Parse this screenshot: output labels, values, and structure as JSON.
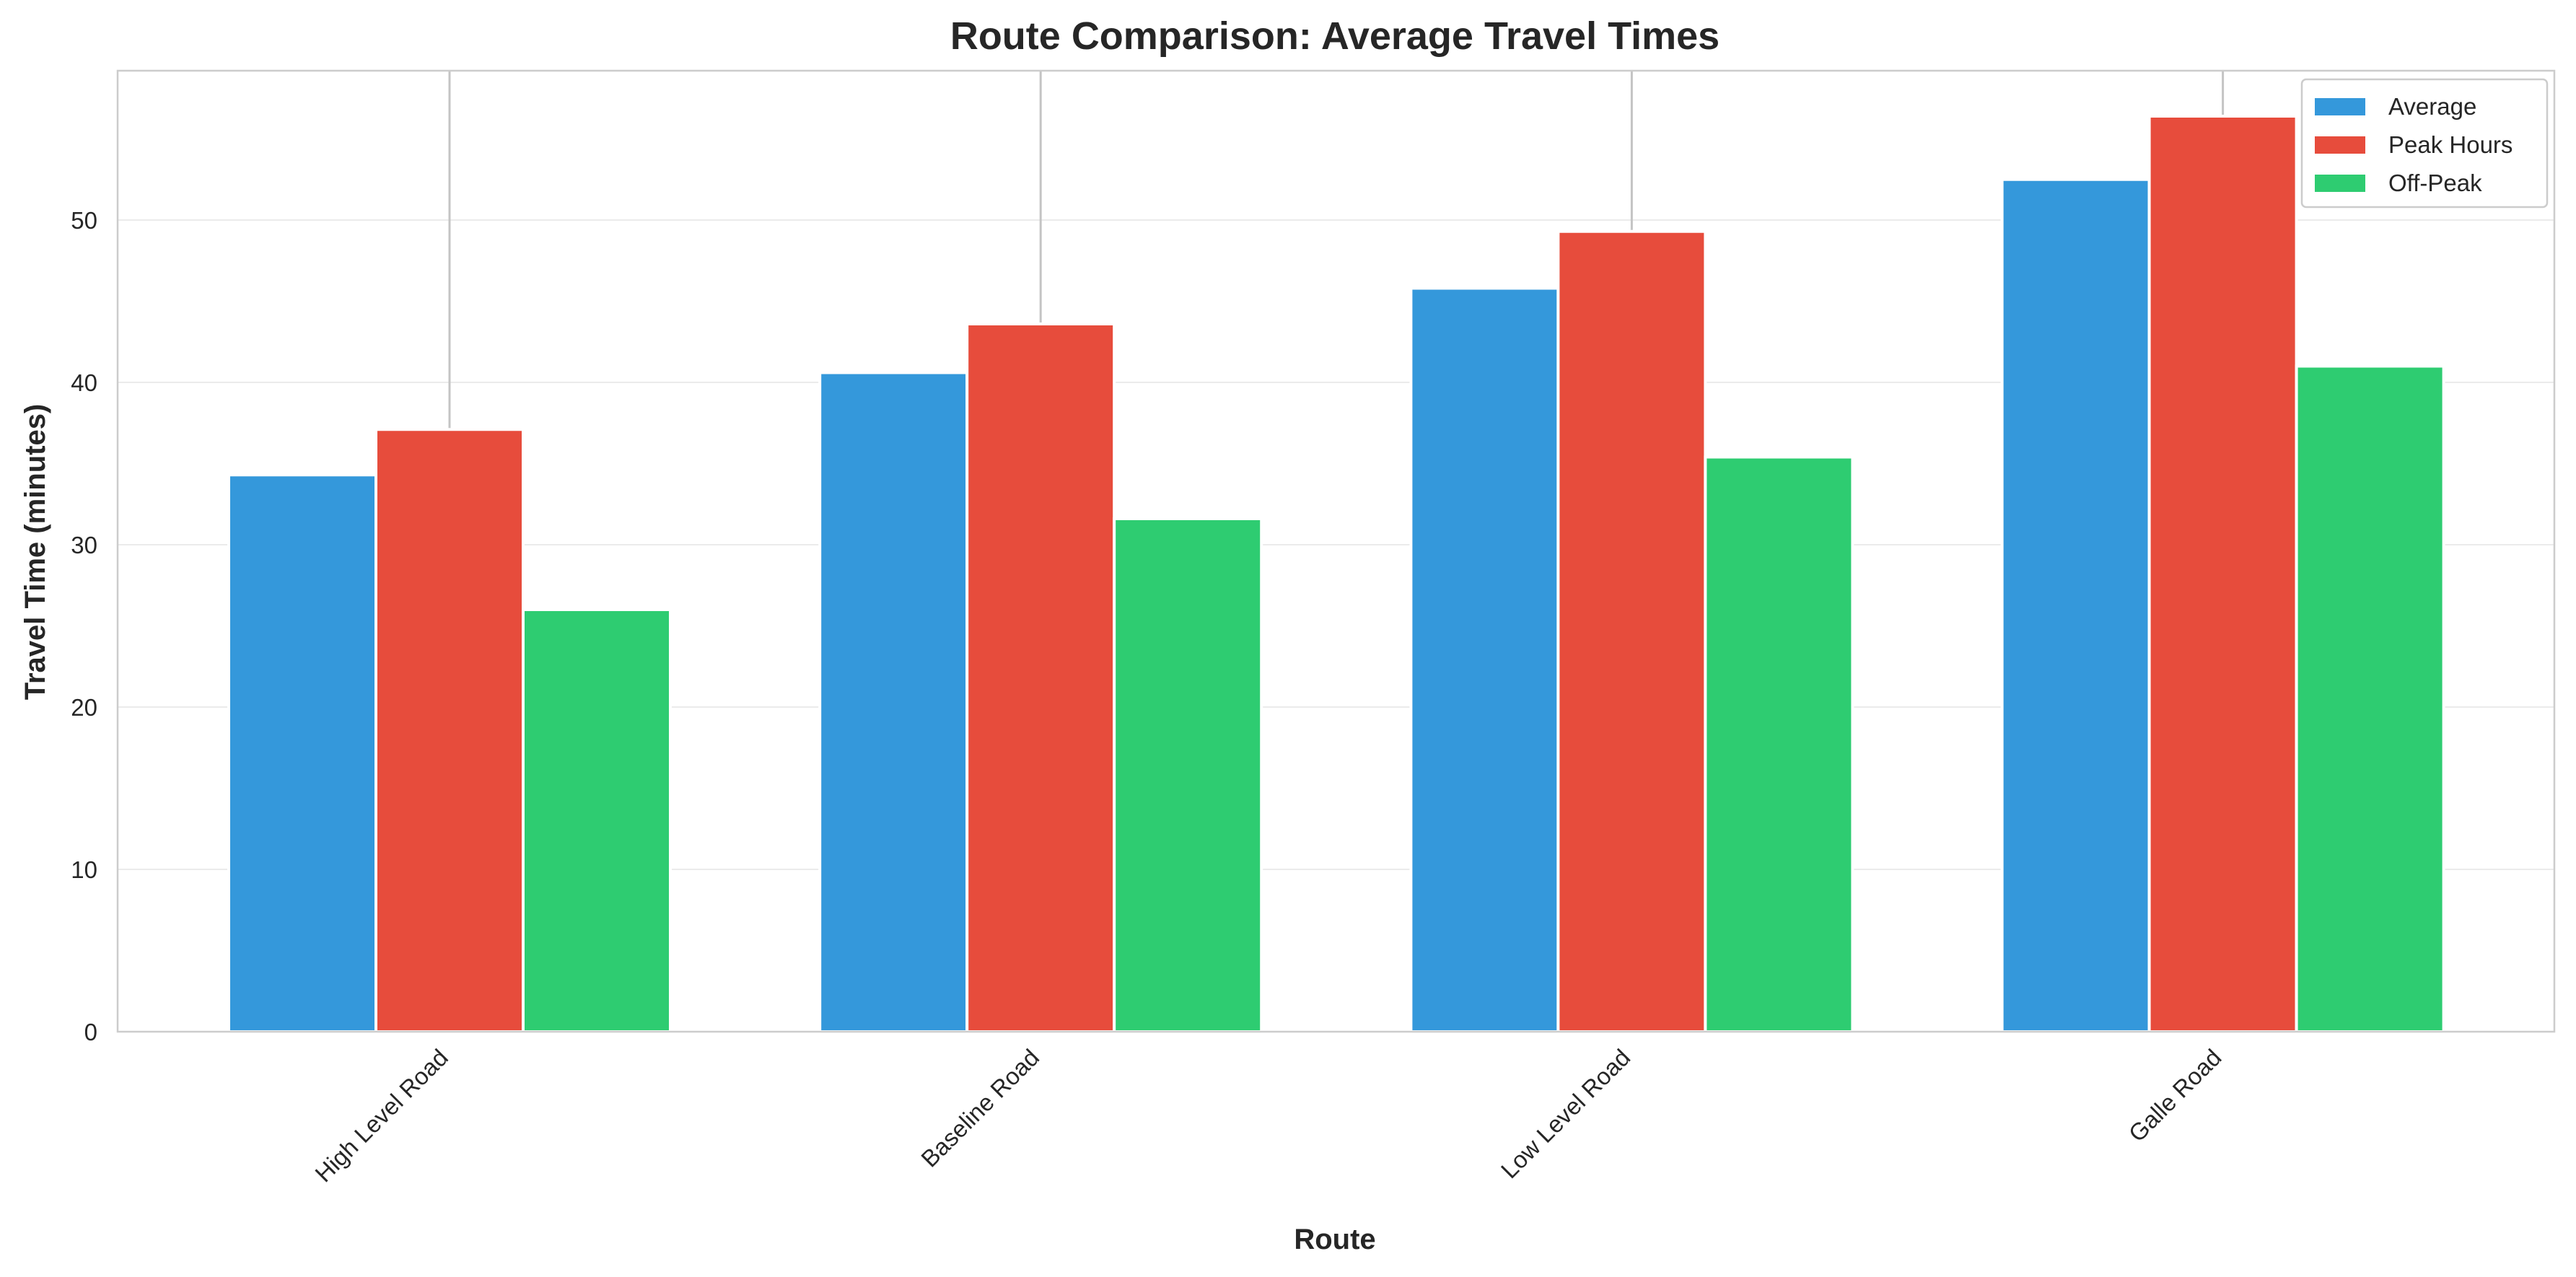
{
  "chart_data": {
    "type": "bar",
    "title": "Route Comparison: Average Travel Times",
    "xlabel": "Route",
    "ylabel": "Travel Time (minutes)",
    "categories": [
      "High Level Road",
      "Baseline Road",
      "Low Level Road",
      "Galle Road"
    ],
    "series": [
      {
        "name": "Average",
        "color": "#3498db",
        "values": [
          34.3,
          40.6,
          45.8,
          52.5
        ]
      },
      {
        "name": "Peak Hours",
        "color": "#e74c3c",
        "values": [
          37.1,
          43.6,
          49.3,
          56.4
        ]
      },
      {
        "name": "Off-Peak",
        "color": "#2ecc71",
        "values": [
          26.0,
          31.6,
          35.4,
          41.0
        ]
      }
    ],
    "error_bars": {
      "series": "Peak Hours",
      "upper": [
        59.2,
        59.2,
        59.2,
        59.2
      ]
    },
    "ylim": [
      0,
      59.2
    ],
    "yticks": [
      0,
      10,
      20,
      30,
      40,
      50
    ],
    "grid": "y",
    "legend_position": "top-right"
  }
}
